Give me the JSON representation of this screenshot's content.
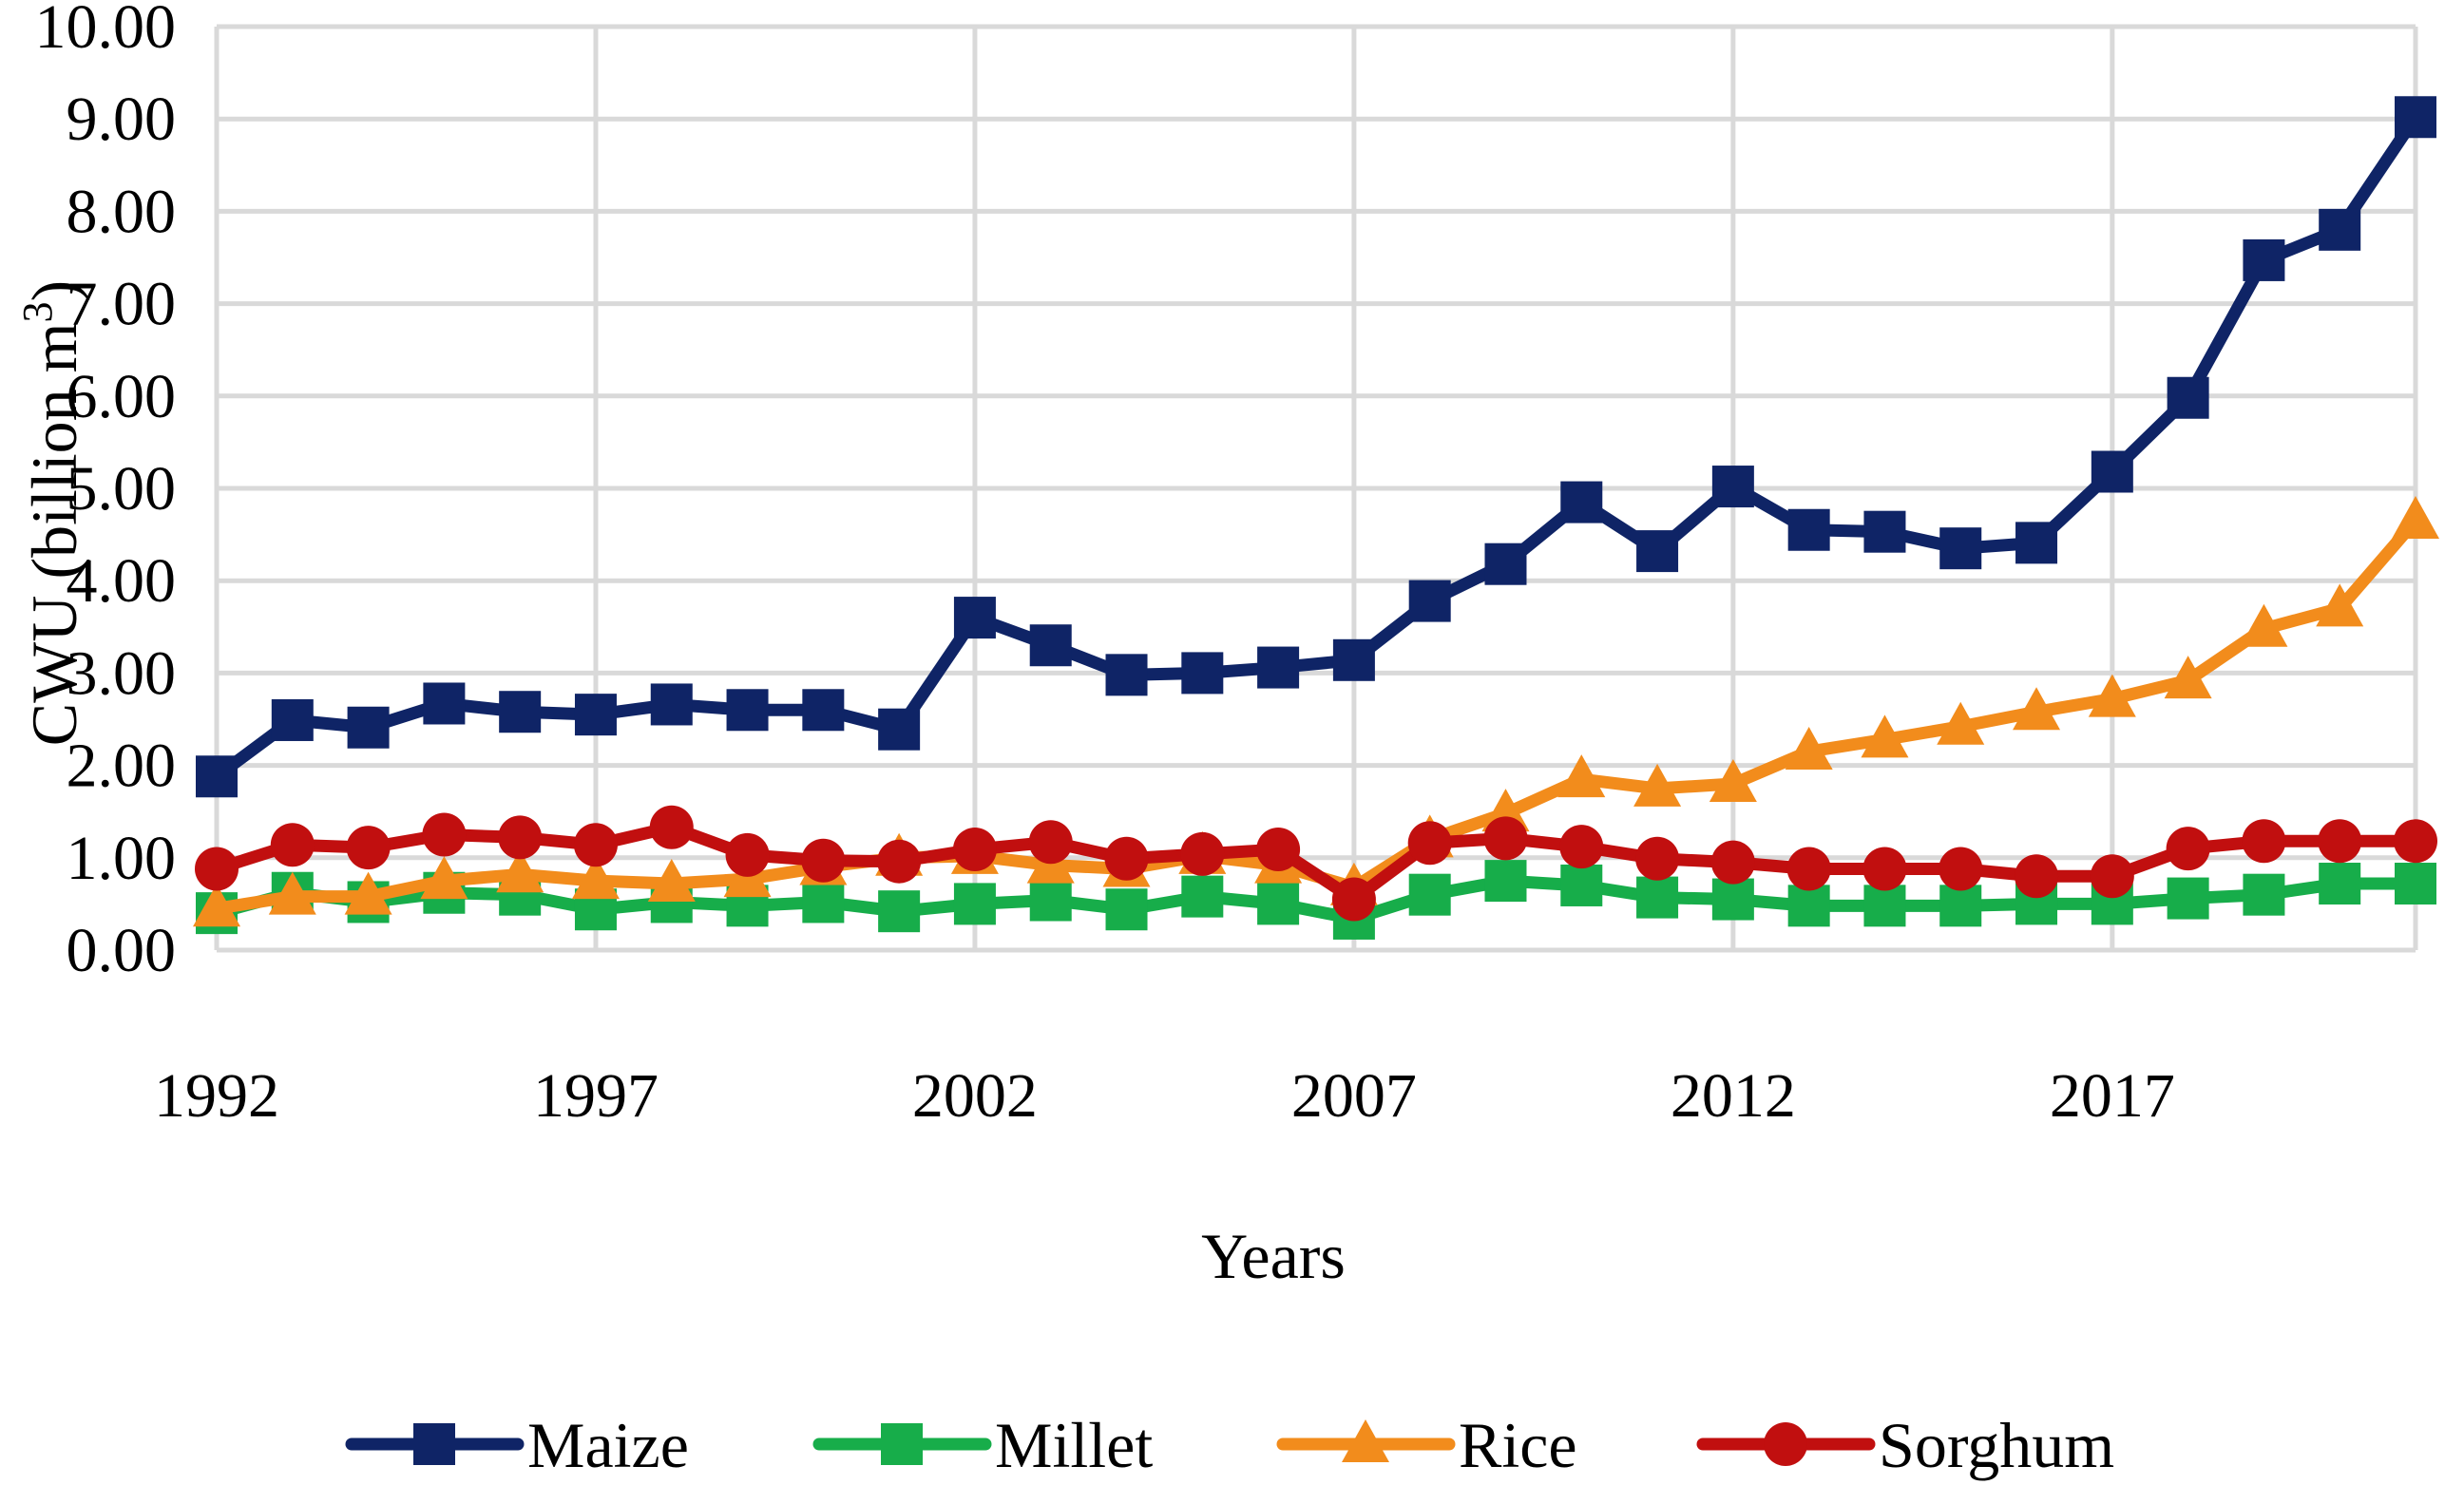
{
  "chart_data": {
    "type": "line",
    "title": "",
    "xlabel": "Years",
    "ylabel": "CWU (billion m",
    "ylabel_superscript": "3",
    "ylabel_close": ")",
    "x": [
      1992,
      1993,
      1994,
      1995,
      1996,
      1997,
      1998,
      1999,
      2000,
      2001,
      2002,
      2003,
      2004,
      2005,
      2006,
      2007,
      2008,
      2009,
      2010,
      2011,
      2012,
      2013,
      2014,
      2015,
      2016,
      2017,
      2018,
      2019,
      2020,
      2021
    ],
    "xlim": [
      1992,
      2021
    ],
    "xticks": [
      1992,
      1997,
      2002,
      2007,
      2012,
      2017
    ],
    "xtick_labels": [
      "1992",
      "1997",
      "2002",
      "2007",
      "2012",
      "2017"
    ],
    "ylim": [
      0,
      10
    ],
    "yticks": [
      0,
      1,
      2,
      3,
      4,
      5,
      6,
      7,
      8,
      9,
      10
    ],
    "ytick_labels": [
      "0.00",
      "1.00",
      "2.00",
      "3.00",
      "4.00",
      "5.00",
      "6.00",
      "7.00",
      "8.00",
      "9.00",
      "10.00"
    ],
    "grid": true,
    "legend_position": "bottom",
    "series": [
      {
        "name": "Maize",
        "color": "#0f2466",
        "marker": "square",
        "values": [
          1.88,
          2.49,
          2.41,
          2.67,
          2.58,
          2.55,
          2.66,
          2.6,
          2.6,
          2.39,
          3.6,
          3.3,
          2.98,
          3.0,
          3.06,
          3.14,
          3.78,
          4.18,
          4.85,
          4.32,
          5.02,
          4.55,
          4.53,
          4.35,
          4.41,
          5.18,
          5.98,
          7.47,
          7.8,
          9.02
        ]
      },
      {
        "name": "Millet",
        "color": "#17ad4a",
        "marker": "square",
        "values": [
          0.4,
          0.62,
          0.52,
          0.62,
          0.6,
          0.44,
          0.52,
          0.48,
          0.52,
          0.42,
          0.5,
          0.54,
          0.44,
          0.58,
          0.5,
          0.34,
          0.6,
          0.75,
          0.7,
          0.57,
          0.55,
          0.48,
          0.48,
          0.48,
          0.5,
          0.5,
          0.56,
          0.6,
          0.72,
          0.72
        ]
      },
      {
        "name": "Rice",
        "color": "#f28c1c",
        "marker": "triangle",
        "values": [
          0.45,
          0.58,
          0.58,
          0.75,
          0.82,
          0.75,
          0.72,
          0.77,
          0.9,
          1.0,
          1.02,
          0.92,
          0.88,
          1.02,
          0.92,
          0.68,
          1.2,
          1.48,
          1.85,
          1.75,
          1.8,
          2.15,
          2.28,
          2.42,
          2.58,
          2.72,
          2.92,
          3.48,
          3.7,
          4.65
        ]
      },
      {
        "name": "Sorghum",
        "color": "#c10f0f",
        "marker": "circle",
        "values": [
          0.88,
          1.14,
          1.11,
          1.25,
          1.22,
          1.14,
          1.33,
          1.03,
          0.97,
          0.96,
          1.09,
          1.17,
          0.99,
          1.04,
          1.09,
          0.55,
          1.16,
          1.21,
          1.12,
          0.99,
          0.95,
          0.88,
          0.88,
          0.88,
          0.8,
          0.8,
          1.1,
          1.18,
          1.18,
          1.18
        ]
      }
    ]
  }
}
